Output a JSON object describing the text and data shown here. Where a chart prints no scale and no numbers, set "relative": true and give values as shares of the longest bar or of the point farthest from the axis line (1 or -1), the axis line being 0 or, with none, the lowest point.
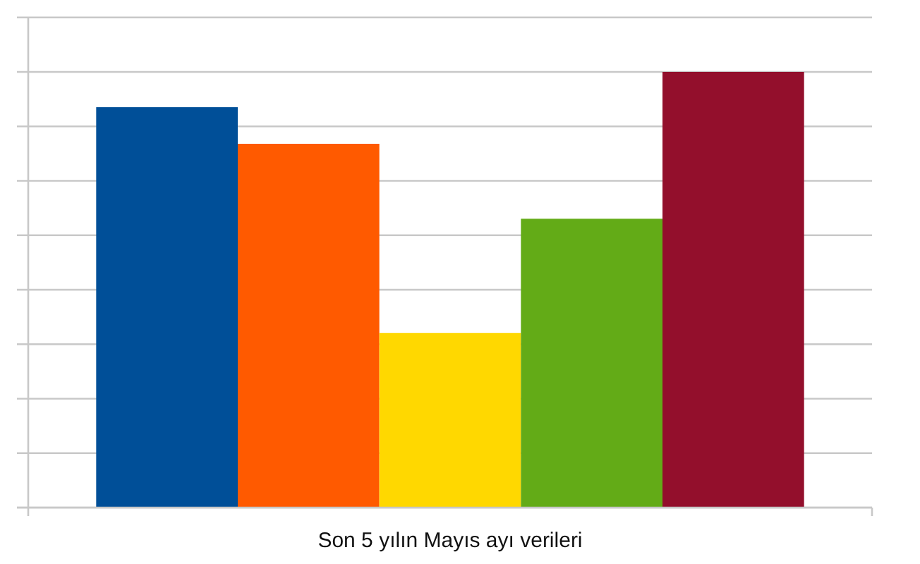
{
  "chart_data": {
    "type": "bar",
    "xlabel": "Son 5 yılın Mayıs ayı verileri",
    "relative": true,
    "grid": "y",
    "categories": [
      null,
      null,
      null,
      null,
      null
    ],
    "values": [
      0.919,
      0.835,
      0.401,
      0.663,
      1
    ],
    "colors": [
      "#004f98",
      "#ff5a00",
      "#ffd800",
      "#63ab17",
      "#930f2c"
    ]
  }
}
